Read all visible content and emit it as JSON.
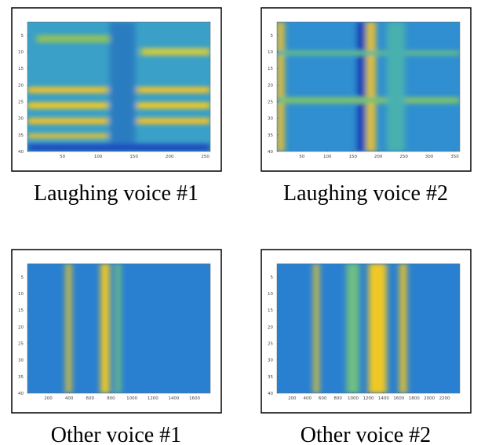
{
  "panels": [
    {
      "caption": "Laughing voice #1",
      "xlim": [
        1,
        257
      ],
      "ylim": [
        1,
        40
      ],
      "xticks": [
        50,
        100,
        150,
        200,
        250
      ],
      "yticks": [
        5,
        10,
        15,
        20,
        25,
        30,
        35,
        40
      ]
    },
    {
      "caption": "Laughing voice #2",
      "xlim": [
        1,
        360
      ],
      "ylim": [
        1,
        40
      ],
      "xticks": [
        50,
        100,
        150,
        200,
        250,
        300,
        350
      ],
      "yticks": [
        5,
        10,
        15,
        20,
        25,
        30,
        35,
        40
      ]
    },
    {
      "caption": "Other voice #1",
      "xlim": [
        1,
        1750
      ],
      "ylim": [
        1,
        40
      ],
      "xticks": [
        200,
        400,
        600,
        800,
        1000,
        1200,
        1400,
        1600
      ],
      "yticks": [
        5,
        10,
        15,
        20,
        25,
        30,
        35,
        40
      ]
    },
    {
      "caption": "Other voice #2",
      "xlim": [
        1,
        2400
      ],
      "ylim": [
        1,
        40
      ],
      "xticks": [
        200,
        400,
        600,
        800,
        1000,
        1200,
        1400,
        1600,
        1800,
        2000,
        2200
      ],
      "yticks": [
        5,
        10,
        15,
        20,
        25,
        30,
        35,
        40
      ]
    }
  ]
}
